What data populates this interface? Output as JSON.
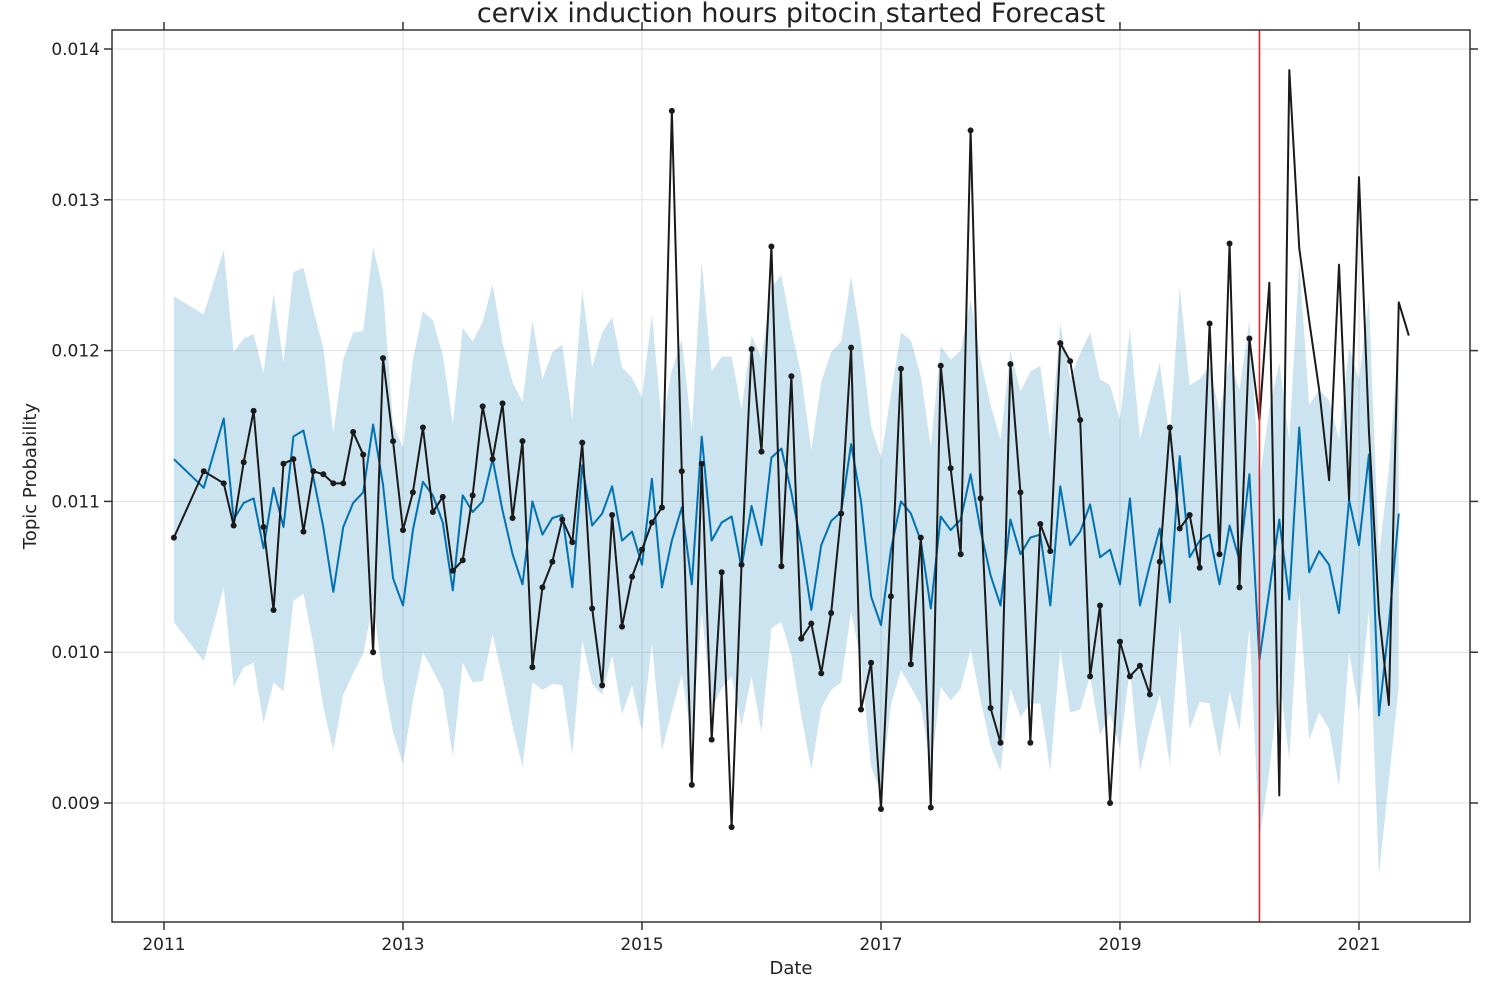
{
  "chart_data": {
    "type": "line",
    "title": "cervix induction hours pitocin started Forecast",
    "x_label": "Date",
    "y_label": "Topic Probability",
    "xlim": [
      2010.565,
      2021.929
    ],
    "ylim": [
      0.008211,
      0.014126
    ],
    "xticks": [
      2011,
      2013,
      2015,
      2017,
      2019,
      2021
    ],
    "yticks": [
      0.009,
      {
        "value": 0.01,
        "label": "0.010"
      },
      0.011,
      0.012,
      0.013,
      0.014
    ],
    "grid": true,
    "vline": {
      "value": 2020.167,
      "color": "#d62728"
    },
    "x": [
      2011.083,
      2011.333,
      2011.5,
      2011.583,
      2011.667,
      2011.75,
      2011.833,
      2011.917,
      2012.0,
      2012.083,
      2012.167,
      2012.25,
      2012.333,
      2012.417,
      2012.5,
      2012.583,
      2012.667,
      2012.75,
      2012.833,
      2012.917,
      2013.0,
      2013.083,
      2013.167,
      2013.25,
      2013.333,
      2013.417,
      2013.5,
      2013.583,
      2013.667,
      2013.75,
      2013.833,
      2013.917,
      2014.0,
      2014.083,
      2014.167,
      2014.25,
      2014.333,
      2014.417,
      2014.5,
      2014.583,
      2014.667,
      2014.75,
      2014.833,
      2014.917,
      2015.0,
      2015.083,
      2015.167,
      2015.25,
      2015.333,
      2015.417,
      2015.5,
      2015.583,
      2015.667,
      2015.75,
      2015.833,
      2015.917,
      2016.0,
      2016.083,
      2016.167,
      2016.25,
      2016.333,
      2016.417,
      2016.5,
      2016.583,
      2016.667,
      2016.75,
      2016.833,
      2016.917,
      2017.0,
      2017.083,
      2017.167,
      2017.25,
      2017.333,
      2017.417,
      2017.5,
      2017.583,
      2017.667,
      2017.75,
      2017.833,
      2017.917,
      2018.0,
      2018.083,
      2018.167,
      2018.25,
      2018.333,
      2018.417,
      2018.5,
      2018.583,
      2018.667,
      2018.75,
      2018.833,
      2018.917,
      2019.0,
      2019.083,
      2019.167,
      2019.25,
      2019.333,
      2019.417,
      2019.5,
      2019.583,
      2019.667,
      2019.75,
      2019.833,
      2019.917,
      2020.0,
      2020.083,
      2020.167,
      2020.25,
      2020.333,
      2020.417,
      2020.5,
      2020.583,
      2020.667,
      2020.75,
      2020.833,
      2020.917,
      2021.0,
      2021.083,
      2021.167,
      2021.25,
      2021.333,
      2021.417
    ],
    "series": [
      {
        "color": "#0072b2",
        "band_opacity": 0.2,
        "markers": false,
        "values": [
          0.01128,
          0.01109,
          0.01155,
          0.01088,
          0.01099,
          0.01102,
          0.01069,
          0.01109,
          0.01083,
          0.01143,
          0.01147,
          0.01116,
          0.01083,
          0.0104,
          0.01083,
          0.01099,
          0.01106,
          0.01151,
          0.01111,
          0.01049,
          0.01031,
          0.01081,
          0.01113,
          0.01104,
          0.01086,
          0.01041,
          0.01104,
          0.01093,
          0.011,
          0.01128,
          0.01094,
          0.01065,
          0.01045,
          0.011,
          0.01078,
          0.01089,
          0.01091,
          0.01043,
          0.01124,
          0.01084,
          0.01092,
          0.0111,
          0.01074,
          0.0108,
          0.01058,
          0.01115,
          0.01043,
          0.01074,
          0.01096,
          0.01045,
          0.01143,
          0.01074,
          0.01086,
          0.0109,
          0.01056,
          0.01097,
          0.01071,
          0.01129,
          0.01135,
          0.01106,
          0.01071,
          0.01028,
          0.01071,
          0.01087,
          0.01093,
          0.01138,
          0.011,
          0.01037,
          0.01018,
          0.01068,
          0.011,
          0.01092,
          0.01074,
          0.01029,
          0.0109,
          0.01081,
          0.01088,
          0.01118,
          0.01081,
          0.01051,
          0.01031,
          0.01088,
          0.01065,
          0.01076,
          0.01078,
          0.01031,
          0.0111,
          0.01071,
          0.0108,
          0.01098,
          0.01063,
          0.01068,
          0.01045,
          0.01102,
          0.01031,
          0.01058,
          0.01082,
          0.01033,
          0.0113,
          0.01063,
          0.01074,
          0.01078,
          0.01045,
          0.01084,
          0.01061,
          0.01118,
          0.00995,
          0.01041,
          0.01088,
          0.01035,
          0.01149,
          0.01053,
          0.01067,
          0.01058,
          0.01026,
          0.01101,
          0.01071,
          0.01131,
          0.00958,
          0.01018,
          0.01092,
          null
        ],
        "upper": [
          0.01236,
          0.01224,
          0.01267,
          0.01199,
          0.01208,
          0.01211,
          0.01185,
          0.01238,
          0.01192,
          0.01252,
          0.01255,
          0.01227,
          0.01202,
          0.01145,
          0.01194,
          0.01212,
          0.01213,
          0.01269,
          0.0124,
          0.01151,
          0.01136,
          0.01194,
          0.01226,
          0.0122,
          0.01197,
          0.01151,
          0.01215,
          0.01206,
          0.01219,
          0.01244,
          0.01205,
          0.01179,
          0.01166,
          0.0122,
          0.01181,
          0.01199,
          0.01204,
          0.01154,
          0.0124,
          0.01189,
          0.01212,
          0.01222,
          0.01189,
          0.01182,
          0.01169,
          0.01224,
          0.01151,
          0.01187,
          0.01207,
          0.01147,
          0.01259,
          0.01186,
          0.01196,
          0.01196,
          0.01161,
          0.0121,
          0.01195,
          0.01242,
          0.0125,
          0.01214,
          0.01184,
          0.01134,
          0.01179,
          0.01199,
          0.01206,
          0.01249,
          0.01207,
          0.0115,
          0.01129,
          0.01171,
          0.01212,
          0.01207,
          0.01183,
          0.01136,
          0.01203,
          0.01194,
          0.012,
          0.01234,
          0.01194,
          0.01164,
          0.01141,
          0.012,
          0.01173,
          0.01186,
          0.0119,
          0.01141,
          0.01218,
          0.01182,
          0.01198,
          0.01212,
          0.01181,
          0.01177,
          0.01154,
          0.01215,
          0.01141,
          0.01167,
          0.01192,
          0.01141,
          0.01242,
          0.01177,
          0.01181,
          0.0119,
          0.01159,
          0.01194,
          0.01174,
          0.0122,
          0.01114,
          0.01161,
          0.01192,
          0.01141,
          0.01259,
          0.01164,
          0.01174,
          0.01167,
          0.01141,
          0.01202,
          0.01181,
          0.01234,
          0.01064,
          0.01121,
          0.01207,
          null
        ],
        "lower": [
          0.0102,
          0.00994,
          0.01043,
          0.00977,
          0.0099,
          0.00993,
          0.00953,
          0.0098,
          0.00974,
          0.01034,
          0.01039,
          0.01005,
          0.00964,
          0.00935,
          0.00972,
          0.00986,
          0.00999,
          0.01033,
          0.00982,
          0.00947,
          0.00926,
          0.00968,
          0.01,
          0.00988,
          0.00975,
          0.00931,
          0.00993,
          0.0098,
          0.00981,
          0.01012,
          0.00983,
          0.00951,
          0.00924,
          0.0098,
          0.00975,
          0.00979,
          0.00978,
          0.00932,
          0.01008,
          0.00979,
          0.00972,
          0.00998,
          0.00959,
          0.00978,
          0.00947,
          0.01006,
          0.00935,
          0.00961,
          0.00985,
          0.00943,
          0.01027,
          0.00962,
          0.00976,
          0.00984,
          0.00951,
          0.00984,
          0.00947,
          0.01016,
          0.0102,
          0.00998,
          0.00958,
          0.00922,
          0.00963,
          0.00975,
          0.0098,
          0.01027,
          0.00993,
          0.00924,
          0.00907,
          0.00965,
          0.00988,
          0.00977,
          0.00965,
          0.00922,
          0.00977,
          0.00968,
          0.00976,
          0.01002,
          0.00968,
          0.00938,
          0.00921,
          0.00976,
          0.00957,
          0.00966,
          0.00966,
          0.00921,
          0.01002,
          0.0096,
          0.00962,
          0.00984,
          0.00945,
          0.00959,
          0.00936,
          0.00989,
          0.00921,
          0.00949,
          0.00972,
          0.00925,
          0.01018,
          0.00949,
          0.00967,
          0.00966,
          0.00931,
          0.00974,
          0.00948,
          0.01016,
          0.00876,
          0.00921,
          0.00984,
          0.00929,
          0.01039,
          0.00942,
          0.0096,
          0.00949,
          0.00911,
          0.01,
          0.00961,
          0.01028,
          0.00852,
          0.00915,
          0.00977,
          null
        ]
      },
      {
        "color": "#1a1a1a",
        "markers": true,
        "values": [
          0.01076,
          0.0112,
          0.01112,
          0.01084,
          0.01126,
          0.0116,
          0.01083,
          0.01028,
          0.01125,
          0.01128,
          0.0108,
          0.0112,
          0.01118,
          0.01112,
          0.01112,
          0.01146,
          0.01131,
          0.01,
          0.01195,
          0.0114,
          0.01081,
          0.01106,
          0.01149,
          0.01093,
          0.01103,
          0.01054,
          0.01061,
          0.01104,
          0.01163,
          0.01128,
          0.01165,
          0.01089,
          0.0114,
          0.0099,
          0.01043,
          0.0106,
          0.01088,
          0.01073,
          0.01139,
          0.01029,
          0.00978,
          0.01091,
          0.01017,
          0.0105,
          0.01068,
          0.01086,
          0.01096,
          0.01359,
          0.0112,
          0.00912,
          0.01125,
          0.00942,
          0.01053,
          0.00884,
          0.01058,
          0.01201,
          0.01133,
          0.01269,
          0.01057,
          0.01183,
          0.01009,
          0.01019,
          0.00986,
          0.01026,
          0.01092,
          0.01202,
          0.00962,
          0.00993,
          0.00896,
          0.01037,
          0.01188,
          0.00992,
          0.01076,
          0.00897,
          0.0119,
          0.01122,
          0.01065,
          0.01346,
          0.01102,
          0.00963,
          0.0094,
          0.01191,
          0.01106,
          0.0094,
          0.01085,
          0.01067,
          0.01205,
          0.01193,
          0.01154,
          0.00984,
          0.01031,
          0.009,
          0.01007,
          0.00984,
          0.00991,
          0.00972,
          0.0106,
          0.01149,
          0.01082,
          0.01091,
          0.01056,
          0.01218,
          0.01065,
          0.01271,
          0.01043,
          0.01208,
          null,
          null,
          null,
          null,
          null,
          null,
          null,
          null,
          null,
          null,
          null,
          null,
          null,
          null,
          null,
          null
        ]
      },
      {
        "color": "#1a1a1a",
        "markers": false,
        "values": [
          null,
          null,
          null,
          null,
          null,
          null,
          null,
          null,
          null,
          null,
          null,
          null,
          null,
          null,
          null,
          null,
          null,
          null,
          null,
          null,
          null,
          null,
          null,
          null,
          null,
          null,
          null,
          null,
          null,
          null,
          null,
          null,
          null,
          null,
          null,
          null,
          null,
          null,
          null,
          null,
          null,
          null,
          null,
          null,
          null,
          null,
          null,
          null,
          null,
          null,
          null,
          null,
          null,
          null,
          null,
          null,
          null,
          null,
          null,
          null,
          null,
          null,
          null,
          null,
          null,
          null,
          null,
          null,
          null,
          null,
          null,
          null,
          null,
          null,
          null,
          null,
          null,
          null,
          null,
          null,
          null,
          null,
          null,
          null,
          null,
          null,
          null,
          null,
          null,
          null,
          null,
          null,
          null,
          null,
          null,
          null,
          null,
          null,
          null,
          null,
          null,
          null,
          null,
          null,
          null,
          0.01208,
          0.01154,
          0.01245,
          0.00905,
          0.01386,
          0.01268,
          0.0122,
          0.01174,
          0.01114,
          0.01257,
          0.01101,
          0.01315,
          0.01147,
          0.01026,
          0.00965,
          0.01232,
          0.0121
        ]
      }
    ]
  }
}
